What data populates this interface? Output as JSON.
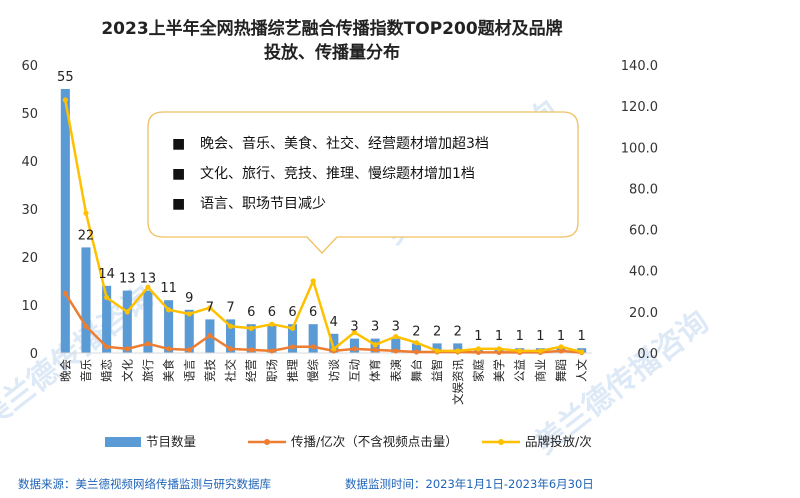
{
  "chart_data": {
    "type": "bar",
    "title_line1": "2023上半年全网热播综艺融合传播指数TOP200题材及品牌",
    "title_line2": "投放、传播量分布",
    "categories": [
      "晚会",
      "音乐",
      "婚恋",
      "文化",
      "旅行",
      "美食",
      "语言",
      "竞技",
      "社交",
      "经营",
      "职场",
      "推理",
      "慢综",
      "访谈",
      "互动",
      "体育",
      "表演",
      "舞台",
      "益智",
      "文娱资讯",
      "家庭",
      "美学",
      "公益",
      "商业",
      "舞蹈",
      "人文"
    ],
    "series": [
      {
        "name": "节目数量",
        "axis": "left",
        "kind": "bar",
        "color": "#5b9bd5",
        "values": [
          55,
          22,
          14,
          13,
          13,
          11,
          9,
          7,
          7,
          6,
          6,
          6,
          6,
          4,
          3,
          3,
          3,
          2,
          2,
          2,
          1,
          1,
          1,
          1,
          1,
          1
        ]
      },
      {
        "name": "传播/亿次（不含视频点击量）",
        "axis": "right",
        "kind": "line",
        "color": "#ed7d31",
        "values": [
          29,
          13,
          3,
          2,
          4.5,
          2,
          1.5,
          8.5,
          2,
          1.5,
          1,
          3,
          3,
          1,
          2,
          1.5,
          1,
          0.5,
          0.5,
          0.5,
          0.3,
          0.3,
          0.3,
          0.3,
          1,
          0.2
        ]
      },
      {
        "name": "品牌投放/次",
        "axis": "right",
        "kind": "line",
        "color": "#ffc000",
        "values": [
          123,
          68,
          27,
          20,
          32,
          21,
          19,
          22,
          13,
          12,
          14,
          12,
          35,
          2,
          10,
          4,
          8,
          5,
          1,
          1,
          2,
          2,
          1,
          1,
          3,
          0.5
        ]
      }
    ],
    "y_left": {
      "min": 0,
      "max": 60,
      "ticks": [
        "0",
        "10",
        "20",
        "30",
        "40",
        "50",
        "60"
      ]
    },
    "y_right": {
      "min": 0,
      "max": 140,
      "ticks": [
        "0.0",
        "20.0",
        "40.0",
        "60.0",
        "80.0",
        "100.0",
        "120.0",
        "140.0"
      ]
    }
  },
  "annotation": {
    "items": [
      "晚会、音乐、美食、社交、经营题材增加超3档",
      "文化、旅行、竞技、推理、慢综题材增加1档",
      "语言、职场节目减少"
    ],
    "bullet": "■"
  },
  "footer": {
    "source": "数据来源：美兰德视频网络传播监测与研究数据库",
    "period": "数据监测时间：2023年1月1日-2023年6月30日"
  },
  "watermark": {
    "text": "美兰德传播咨询"
  },
  "colors": {
    "bar": "#5b9bd5",
    "line1": "#ed7d31",
    "line2": "#ffc000",
    "note_border": "#f0c060",
    "source": "#1f64b8"
  }
}
